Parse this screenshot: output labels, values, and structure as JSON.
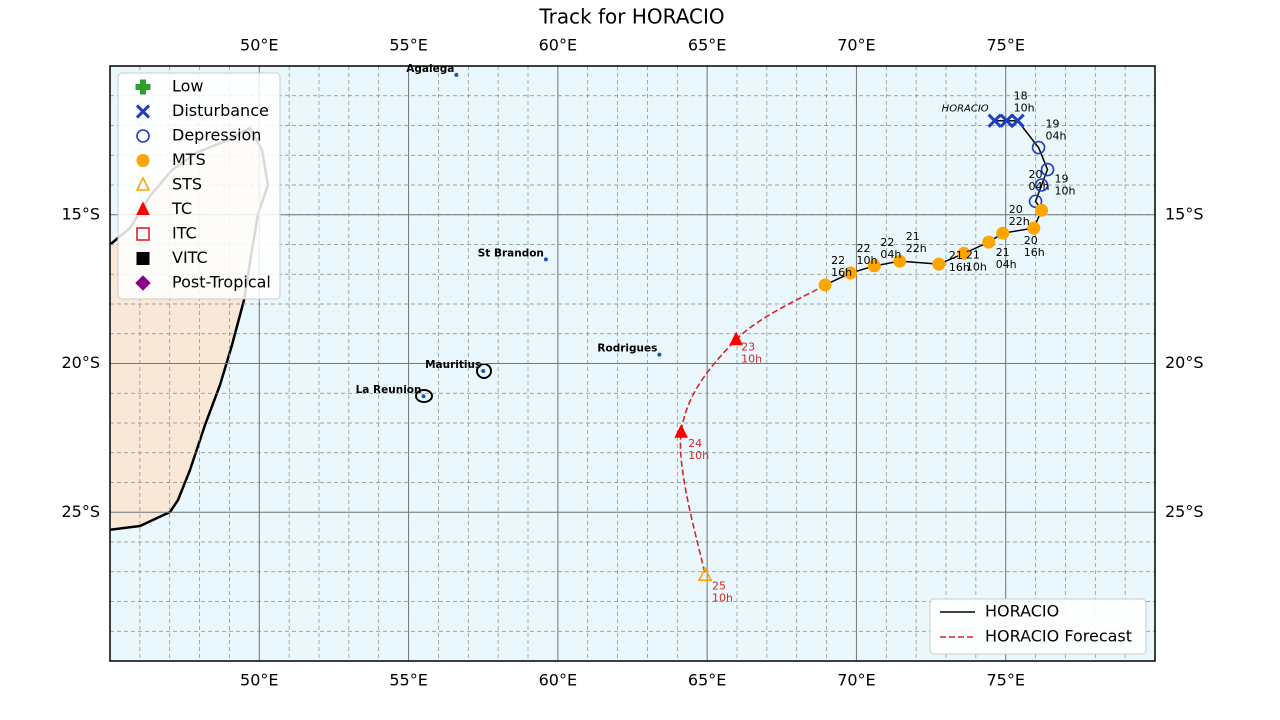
{
  "title": "Track for HORACIO",
  "map": {
    "lonlim": [
      45,
      80
    ],
    "latlim": [
      -30,
      -10
    ],
    "grid_step": 1,
    "background": "#eaf7fc",
    "land": "#f9e8d8",
    "lon_ticks": [
      {
        "value": 50,
        "label": "50°E"
      },
      {
        "value": 55,
        "label": "55°E"
      },
      {
        "value": 60,
        "label": "60°E"
      },
      {
        "value": 65,
        "label": "65°E"
      },
      {
        "value": 70,
        "label": "70°E"
      },
      {
        "value": 75,
        "label": "75°E"
      }
    ],
    "lat_ticks": [
      {
        "value": -15,
        "label": "15°S"
      },
      {
        "value": -20,
        "label": "20°S"
      },
      {
        "value": -25,
        "label": "25°S"
      }
    ]
  },
  "places": [
    {
      "name": "Agalega",
      "lon": 56.6,
      "lat": -10.3
    },
    {
      "name": "St Brandon",
      "lon": 59.6,
      "lat": -16.5
    },
    {
      "name": "Rodrigues",
      "lon": 63.4,
      "lat": -19.7
    },
    {
      "name": "Mauritius",
      "lon": 57.5,
      "lat": -20.25
    },
    {
      "name": "La Reunion",
      "lon": 55.5,
      "lat": -21.1
    }
  ],
  "categories": [
    {
      "name": "Low",
      "color": "#2ca02c",
      "marker": "plus"
    },
    {
      "name": "Disturbance",
      "color": "#1f3fbf",
      "marker": "x-open"
    },
    {
      "name": "Depression",
      "color": "#1f3fbf",
      "marker": "circle-open"
    },
    {
      "name": "MTS",
      "color": "#ffa500",
      "marker": "circle"
    },
    {
      "name": "STS",
      "color": "#ffa500",
      "marker": "triangle-open"
    },
    {
      "name": "TC",
      "color": "#ff0000",
      "marker": "triangle"
    },
    {
      "name": "ITC",
      "color": "#d62728",
      "marker": "square-open"
    },
    {
      "name": "VITC",
      "color": "#000000",
      "marker": "square"
    },
    {
      "name": "Post-Tropical",
      "color": "#8b008b",
      "marker": "diamond"
    }
  ],
  "storm_name": "HORACIO",
  "track": {
    "name": "HORACIO",
    "color": "#000000",
    "points": [
      {
        "lon": 74.63,
        "lat": -11.84,
        "category": "Disturbance"
      },
      {
        "lon": 75.03,
        "lat": -11.84,
        "category": "Disturbance"
      },
      {
        "lon": 75.4,
        "lat": -11.84,
        "category": "Disturbance",
        "day": "18",
        "hour": "10h"
      },
      {
        "lon": 76.1,
        "lat": -12.74,
        "category": "Depression",
        "day": "19",
        "hour": "04h"
      },
      {
        "lon": 76.4,
        "lat": -13.48,
        "category": "Depression",
        "day": "19",
        "hour": "10h"
      },
      {
        "lon": 76.2,
        "lat": -14.0,
        "category": "Depression",
        "day": "20",
        "hour": "04h"
      },
      {
        "lon": 76.0,
        "lat": -14.55,
        "category": "Depression"
      },
      {
        "lon": 76.2,
        "lat": -14.85,
        "category": "MTS"
      },
      {
        "lon": 75.94,
        "lat": -15.45,
        "category": "MTS",
        "day": "20",
        "hour": "16h"
      },
      {
        "lon": 74.9,
        "lat": -15.62,
        "category": "MTS",
        "day": "20",
        "hour": "22h"
      },
      {
        "lon": 74.43,
        "lat": -15.92,
        "category": "MTS",
        "day": "21",
        "hour": "04h"
      },
      {
        "lon": 73.6,
        "lat": -16.3,
        "category": "MTS",
        "day": "21",
        "hour": "10h"
      },
      {
        "lon": 72.76,
        "lat": -16.66,
        "category": "MTS",
        "day": "21",
        "hour": "16h"
      },
      {
        "lon": 71.45,
        "lat": -16.56,
        "category": "MTS",
        "day": "21",
        "hour": "22h"
      },
      {
        "lon": 70.6,
        "lat": -16.72,
        "category": "MTS",
        "day": "22",
        "hour": "04h"
      },
      {
        "lon": 69.8,
        "lat": -16.96,
        "category": "MTS",
        "day": "22",
        "hour": "10h"
      },
      {
        "lon": 68.95,
        "lat": -17.36,
        "category": "MTS",
        "day": "22",
        "hour": "16h"
      }
    ]
  },
  "forecast": {
    "name": "HORACIO Forecast",
    "color": "#d62728",
    "points": [
      {
        "lon": 68.95,
        "lat": -17.36
      },
      {
        "lon": 65.97,
        "lat": -19.2,
        "category": "TC",
        "day": "23",
        "hour": "10h"
      },
      {
        "lon": 64.13,
        "lat": -22.31,
        "category": "TC",
        "day": "24",
        "hour": "10h"
      },
      {
        "lon": 64.93,
        "lat": -27.12,
        "category": "STS",
        "day": "25",
        "hour": "10h"
      }
    ]
  }
}
